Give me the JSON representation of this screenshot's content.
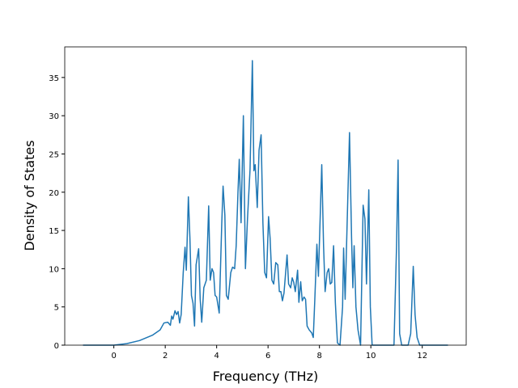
{
  "chart_data": {
    "type": "line",
    "xlabel": "Frequency (THz)",
    "ylabel": "Density of States",
    "x": [
      -1.2,
      0,
      0.5,
      1,
      1.5,
      1.8,
      1.95,
      2.1,
      2.2,
      2.25,
      2.3,
      2.38,
      2.44,
      2.5,
      2.56,
      2.62,
      2.7,
      2.77,
      2.82,
      2.9,
      2.96,
      3.02,
      3.08,
      3.14,
      3.2,
      3.3,
      3.36,
      3.42,
      3.5,
      3.6,
      3.69,
      3.75,
      3.82,
      3.88,
      3.94,
      4.0,
      4.1,
      4.2,
      4.25,
      4.32,
      4.38,
      4.45,
      4.55,
      4.62,
      4.7,
      4.76,
      4.83,
      4.88,
      4.95,
      5.04,
      5.12,
      5.2,
      5.3,
      5.39,
      5.45,
      5.5,
      5.58,
      5.65,
      5.73,
      5.8,
      5.87,
      5.94,
      6.02,
      6.08,
      6.15,
      6.22,
      6.3,
      6.38,
      6.44,
      6.5,
      6.56,
      6.62,
      6.74,
      6.8,
      6.88,
      6.94,
      7.0,
      7.06,
      7.15,
      7.2,
      7.27,
      7.33,
      7.4,
      7.46,
      7.52,
      7.6,
      7.7,
      7.76,
      7.82,
      7.9,
      7.96,
      8.09,
      8.16,
      8.22,
      8.3,
      8.36,
      8.42,
      8.48,
      8.55,
      8.62,
      8.7,
      8.8,
      8.9,
      8.94,
      9.0,
      9.17,
      9.25,
      9.3,
      9.35,
      9.42,
      9.5,
      9.6,
      9.7,
      9.77,
      9.83,
      9.92,
      9.98,
      10.05,
      10.5,
      10.9,
      11.0,
      11.06,
      11.12,
      11.2,
      11.45,
      11.55,
      11.65,
      11.72,
      11.8,
      11.9,
      13.0
    ],
    "y": [
      0,
      0,
      0.2,
      0.6,
      1.3,
      2.0,
      2.9,
      3.0,
      2.6,
      3.8,
      3.4,
      4.5,
      4.0,
      4.4,
      2.9,
      4.0,
      9.5,
      12.8,
      9.8,
      19.4,
      14,
      6.5,
      5.5,
      2.5,
      10.5,
      12.6,
      6,
      3,
      7.5,
      8.5,
      18.2,
      8.5,
      10,
      9.5,
      6.5,
      6.3,
      4.2,
      16,
      20.8,
      17,
      6.5,
      6,
      9.5,
      10.2,
      10,
      13,
      20,
      24.3,
      16,
      30,
      10,
      16.5,
      23,
      37.2,
      22.8,
      23.6,
      18,
      25.5,
      27.5,
      16,
      9.5,
      8.8,
      16.8,
      14,
      8.5,
      8,
      10.8,
      10.5,
      7,
      7,
      5.8,
      6.8,
      11.8,
      8,
      7.5,
      8.8,
      8.2,
      7,
      9.8,
      5.6,
      8.3,
      5.8,
      6.3,
      6,
      2.5,
      2,
      1.6,
      1.0,
      6,
      13.2,
      9,
      23.6,
      13,
      7,
      9.5,
      10,
      8,
      8.2,
      13,
      5.5,
      0.3,
      0,
      5,
      12.7,
      6,
      27.8,
      14,
      7.5,
      13,
      5,
      2,
      0,
      18.3,
      16.5,
      8,
      20.3,
      5,
      0,
      0,
      0,
      13,
      24.2,
      1.5,
      0,
      0,
      1.5,
      10.3,
      4,
      1,
      0,
      0
    ],
    "color": "#1f77b4",
    "xlim": [
      -1.91,
      13.71
    ],
    "ylim": [
      0,
      39
    ],
    "xticks": [
      0,
      2,
      4,
      6,
      8,
      10,
      12
    ],
    "yticks": [
      0,
      5,
      10,
      15,
      20,
      25,
      30,
      35
    ]
  }
}
